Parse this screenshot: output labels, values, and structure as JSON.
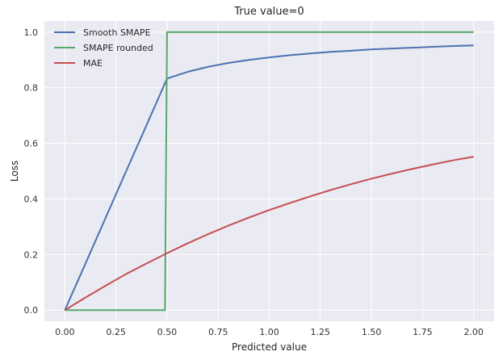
{
  "chart_data": {
    "type": "line",
    "title": "True value=0",
    "xlabel": "Predicted value",
    "ylabel": "Loss",
    "xlim": [
      -0.1,
      2.1
    ],
    "ylim": [
      -0.04,
      1.04
    ],
    "x_ticks": [
      0.0,
      0.25,
      0.5,
      0.75,
      1.0,
      1.25,
      1.5,
      1.75,
      2.0
    ],
    "x_tick_labels": [
      "0.00",
      "0.25",
      "0.50",
      "0.75",
      "1.00",
      "1.25",
      "1.50",
      "1.75",
      "2.00"
    ],
    "y_ticks": [
      0.0,
      0.2,
      0.4,
      0.6,
      0.8,
      1.0
    ],
    "y_tick_labels": [
      "0.0",
      "0.2",
      "0.4",
      "0.6",
      "0.8",
      "1.0"
    ],
    "grid": true,
    "legend_position": "top-left",
    "colors": {
      "background": "#eaeaf2",
      "grid": "#ffffff",
      "smooth_smape": "#4c72b0",
      "smape_rounded": "#55a868",
      "mae": "#c44e52"
    },
    "series": [
      {
        "name": "Smooth SMAPE",
        "x": [
          0.0,
          0.1,
          0.2,
          0.3,
          0.4,
          0.5,
          0.6,
          0.7,
          0.8,
          0.9,
          1.0,
          1.1,
          1.2,
          1.3,
          1.4,
          1.5,
          1.6,
          1.7,
          1.8,
          1.9,
          2.0
        ],
        "y": [
          0.0,
          0.166,
          0.333,
          0.5,
          0.666,
          0.833,
          0.857,
          0.875,
          0.889,
          0.9,
          0.909,
          0.917,
          0.923,
          0.929,
          0.933,
          0.938,
          0.941,
          0.944,
          0.947,
          0.95,
          0.952
        ]
      },
      {
        "name": "SMAPE rounded",
        "x": [
          0.0,
          0.49,
          0.5,
          2.0
        ],
        "y": [
          0.0,
          0.0,
          1.0,
          1.0
        ]
      },
      {
        "name": "MAE",
        "x": [
          0.0,
          0.1,
          0.2,
          0.3,
          0.4,
          0.5,
          0.6,
          0.7,
          0.8,
          0.9,
          1.0,
          1.1,
          1.2,
          1.3,
          1.4,
          1.5,
          1.6,
          1.7,
          1.8,
          1.9,
          2.0
        ],
        "y": [
          0.0,
          0.045,
          0.088,
          0.13,
          0.168,
          0.205,
          0.24,
          0.273,
          0.304,
          0.333,
          0.36,
          0.385,
          0.409,
          0.432,
          0.453,
          0.473,
          0.491,
          0.508,
          0.524,
          0.539,
          0.552
        ]
      }
    ]
  }
}
